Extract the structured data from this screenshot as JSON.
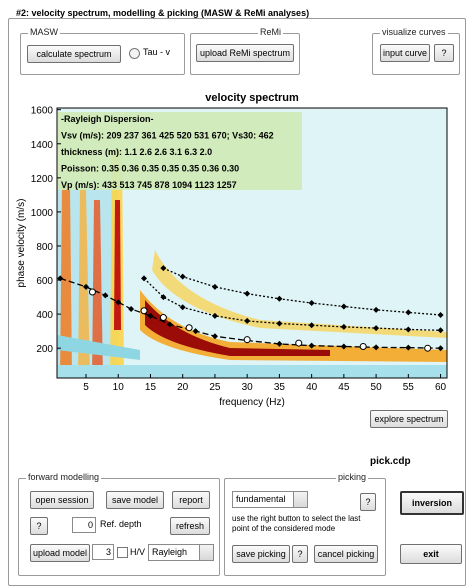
{
  "panel_title": "#2: velocity spectrum, modelling & picking (MASW & ReMi analyses)",
  "masw": {
    "title": "MASW",
    "calculate_button": "calculate spectrum",
    "radio": "Tau - v"
  },
  "remi": {
    "title": "ReMi",
    "upload_button": "upload ReMi spectrum"
  },
  "visualize": {
    "title": "visualize curves",
    "input_button": "input curve",
    "help_button": "?"
  },
  "chart_data": {
    "type": "line",
    "title": "velocity spectrum",
    "x_label": "frequency (Hz)",
    "y_label": "phase velocity (m/s)",
    "xlim": [
      0.5,
      61
    ],
    "ylim": [
      25,
      1610
    ],
    "xticks": [
      5,
      10,
      15,
      20,
      25,
      30,
      35,
      40,
      45,
      50,
      55,
      60
    ],
    "yticks": [
      200,
      400,
      600,
      800,
      1000,
      1200,
      1400,
      1600
    ],
    "info_box": [
      "-Rayleigh Dispersion-",
      "Vsv (m/s): 209  237  361  425  520  531  670;  Vs30: 462",
      "thickness (m): 1.1    2.6    2.6    3.1    6.3    2.0",
      "Poisson: 0.35  0.36  0.35  0.35  0.35  0.36  0.30",
      "Vp (m/s): 433   513   745   878  1094  1123  1257"
    ],
    "series": [
      {
        "color": "#000000",
        "line_style": "dashed",
        "marker": "diamond",
        "x": [
          1,
          5,
          8,
          10,
          12,
          15,
          18,
          22,
          25,
          30,
          35,
          40,
          45,
          50,
          55,
          60
        ],
        "values": [
          610,
          560,
          510,
          470,
          430,
          390,
          340,
          300,
          270,
          245,
          225,
          215,
          210,
          205,
          203,
          200
        ]
      },
      {
        "color": "#000000",
        "line_style": "dotted",
        "marker": "diamond",
        "x": [
          14,
          17,
          20,
          25,
          30,
          35,
          40,
          45,
          50,
          55,
          60
        ],
        "values": [
          610,
          500,
          440,
          390,
          360,
          345,
          335,
          325,
          318,
          310,
          305
        ]
      },
      {
        "color": "#000000",
        "line_style": "dotted",
        "marker": "diamond",
        "x": [
          17,
          20,
          25,
          30,
          35,
          40,
          45,
          50,
          55,
          60
        ],
        "values": [
          670,
          620,
          560,
          520,
          490,
          465,
          445,
          425,
          410,
          395
        ]
      },
      {
        "color": "#ffffff",
        "line_style": "none",
        "marker": "circle",
        "x": [
          6,
          14,
          17,
          21,
          30,
          38,
          48,
          58
        ],
        "values": [
          530,
          420,
          380,
          320,
          250,
          230,
          210,
          200
        ]
      }
    ]
  },
  "explore_button": "explore spectrum",
  "file_name": "pick.cdp",
  "forward": {
    "title": "forward modelling",
    "open_button": "open session",
    "save_button": "save model",
    "report_button": "report",
    "help_button": "?",
    "ref_depth_value": 0,
    "ref_depth_label": "Ref. depth",
    "refresh_button": "refresh",
    "upload_button": "upload model",
    "modes_value": 3,
    "hv_label": "H/V",
    "wave_select": "Rayleigh"
  },
  "picking": {
    "title": "picking",
    "mode_select": "fundamental",
    "help_button": "?",
    "hint": "use the right button to select the last point of the considered mode",
    "save_button": "save picking",
    "help_button_2": "?",
    "cancel_button": "cancel picking"
  },
  "inversion_button": "inversion",
  "exit_button": "exit"
}
